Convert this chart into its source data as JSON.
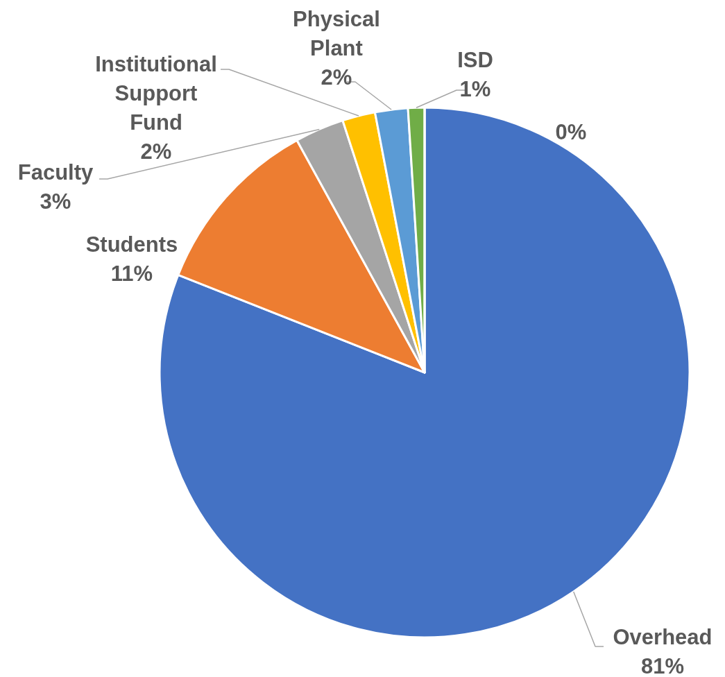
{
  "chart_data": {
    "type": "pie",
    "categories": [
      "Overhead",
      "Students",
      "Faculty",
      "Institutional Support Fund",
      "Physical Plant",
      "ISD",
      null
    ],
    "values": [
      81,
      11,
      3,
      2,
      2,
      1,
      0
    ],
    "colors": [
      "#4472c4",
      "#ed7d31",
      "#a5a5a5",
      "#ffc000",
      "#5b9bd5",
      "#70ad47",
      "#264478"
    ],
    "value_labels": [
      "81%",
      "11%",
      "3%",
      "2%",
      "2%",
      "1%",
      "0%"
    ]
  }
}
